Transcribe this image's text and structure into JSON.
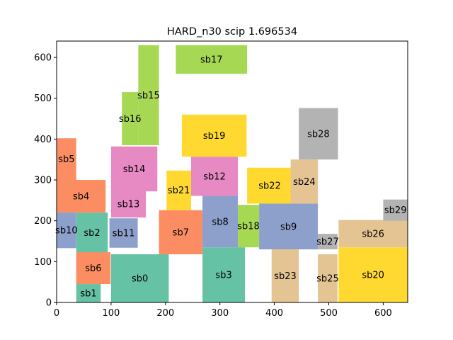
{
  "chart_data": {
    "type": "block-layout",
    "title": "HARD_n30 scip 1.696534",
    "xlabel": "",
    "ylabel": "",
    "xlim": [
      0,
      645
    ],
    "ylim": [
      0,
      640
    ],
    "xticks": [
      0,
      100,
      200,
      300,
      400,
      500,
      600
    ],
    "yticks": [
      0,
      100,
      200,
      300,
      400,
      500,
      600
    ],
    "grid": false,
    "blocks": [
      {
        "name": "sb0",
        "x": 100,
        "y": 0,
        "w": 106,
        "h": 118,
        "color": "#66c2a5"
      },
      {
        "name": "sb1",
        "x": 36,
        "y": 0,
        "w": 45,
        "h": 45,
        "color": "#66c2a5"
      },
      {
        "name": "sb2",
        "x": 36,
        "y": 122,
        "w": 58,
        "h": 98,
        "color": "#66c2a5"
      },
      {
        "name": "sb3",
        "x": 268,
        "y": 0,
        "w": 78,
        "h": 135,
        "color": "#66c2a5"
      },
      {
        "name": "sb4",
        "x": 0,
        "y": 220,
        "w": 90,
        "h": 80,
        "color": "#fc8d62"
      },
      {
        "name": "sb5",
        "x": 0,
        "y": 300,
        "w": 36,
        "h": 102,
        "color": "#fc8d62"
      },
      {
        "name": "sb6",
        "x": 36,
        "y": 45,
        "w": 63,
        "h": 78,
        "color": "#fc8d62"
      },
      {
        "name": "sb7",
        "x": 188,
        "y": 118,
        "w": 80,
        "h": 108,
        "color": "#fc8d62"
      },
      {
        "name": "sb8",
        "x": 268,
        "y": 135,
        "w": 65,
        "h": 126,
        "color": "#8da0cb"
      },
      {
        "name": "sb9",
        "x": 372,
        "y": 130,
        "w": 108,
        "h": 112,
        "color": "#8da0cb"
      },
      {
        "name": "sb10",
        "x": 0,
        "y": 133,
        "w": 36,
        "h": 87,
        "color": "#8da0cb"
      },
      {
        "name": "sb11",
        "x": 97,
        "y": 134,
        "w": 52,
        "h": 72,
        "color": "#8da0cb"
      },
      {
        "name": "sb12",
        "x": 247,
        "y": 261,
        "w": 86,
        "h": 96,
        "color": "#e78ac3"
      },
      {
        "name": "sb13",
        "x": 100,
        "y": 208,
        "w": 64,
        "h": 67,
        "color": "#e78ac3"
      },
      {
        "name": "sb14",
        "x": 100,
        "y": 272,
        "w": 85,
        "h": 110,
        "color": "#e78ac3"
      },
      {
        "name": "sb15",
        "x": 150,
        "y": 385,
        "w": 38,
        "h": 245,
        "color": "#a6d854"
      },
      {
        "name": "sb16",
        "x": 120,
        "y": 385,
        "w": 30,
        "h": 130,
        "color": "#a6d854"
      },
      {
        "name": "sb17",
        "x": 219,
        "y": 560,
        "w": 131,
        "h": 70,
        "color": "#a6d854"
      },
      {
        "name": "sb18",
        "x": 333,
        "y": 135,
        "w": 39,
        "h": 104,
        "color": "#a6d854"
      },
      {
        "name": "sb19",
        "x": 230,
        "y": 357,
        "w": 119,
        "h": 103,
        "color": "#ffd92f"
      },
      {
        "name": "sb20",
        "x": 518,
        "y": 0,
        "w": 127,
        "h": 135,
        "color": "#ffd92f"
      },
      {
        "name": "sb21",
        "x": 202,
        "y": 226,
        "w": 45,
        "h": 97,
        "color": "#ffd92f"
      },
      {
        "name": "sb22",
        "x": 350,
        "y": 242,
        "w": 83,
        "h": 88,
        "color": "#ffd92f"
      },
      {
        "name": "sb23",
        "x": 395,
        "y": 0,
        "w": 50,
        "h": 130,
        "color": "#e5c494"
      },
      {
        "name": "sb24",
        "x": 430,
        "y": 242,
        "w": 50,
        "h": 108,
        "color": "#e5c494"
      },
      {
        "name": "sb25",
        "x": 480,
        "y": 0,
        "w": 36,
        "h": 118,
        "color": "#e5c494"
      },
      {
        "name": "sb26",
        "x": 518,
        "y": 135,
        "w": 127,
        "h": 67,
        "color": "#e5c494"
      },
      {
        "name": "sb27",
        "x": 480,
        "y": 130,
        "w": 36,
        "h": 38,
        "color": "#b3b3b3"
      },
      {
        "name": "sb28",
        "x": 445,
        "y": 350,
        "w": 72,
        "h": 126,
        "color": "#b3b3b3"
      },
      {
        "name": "sb29",
        "x": 600,
        "y": 200,
        "w": 45,
        "h": 52,
        "color": "#b3b3b3"
      }
    ]
  }
}
